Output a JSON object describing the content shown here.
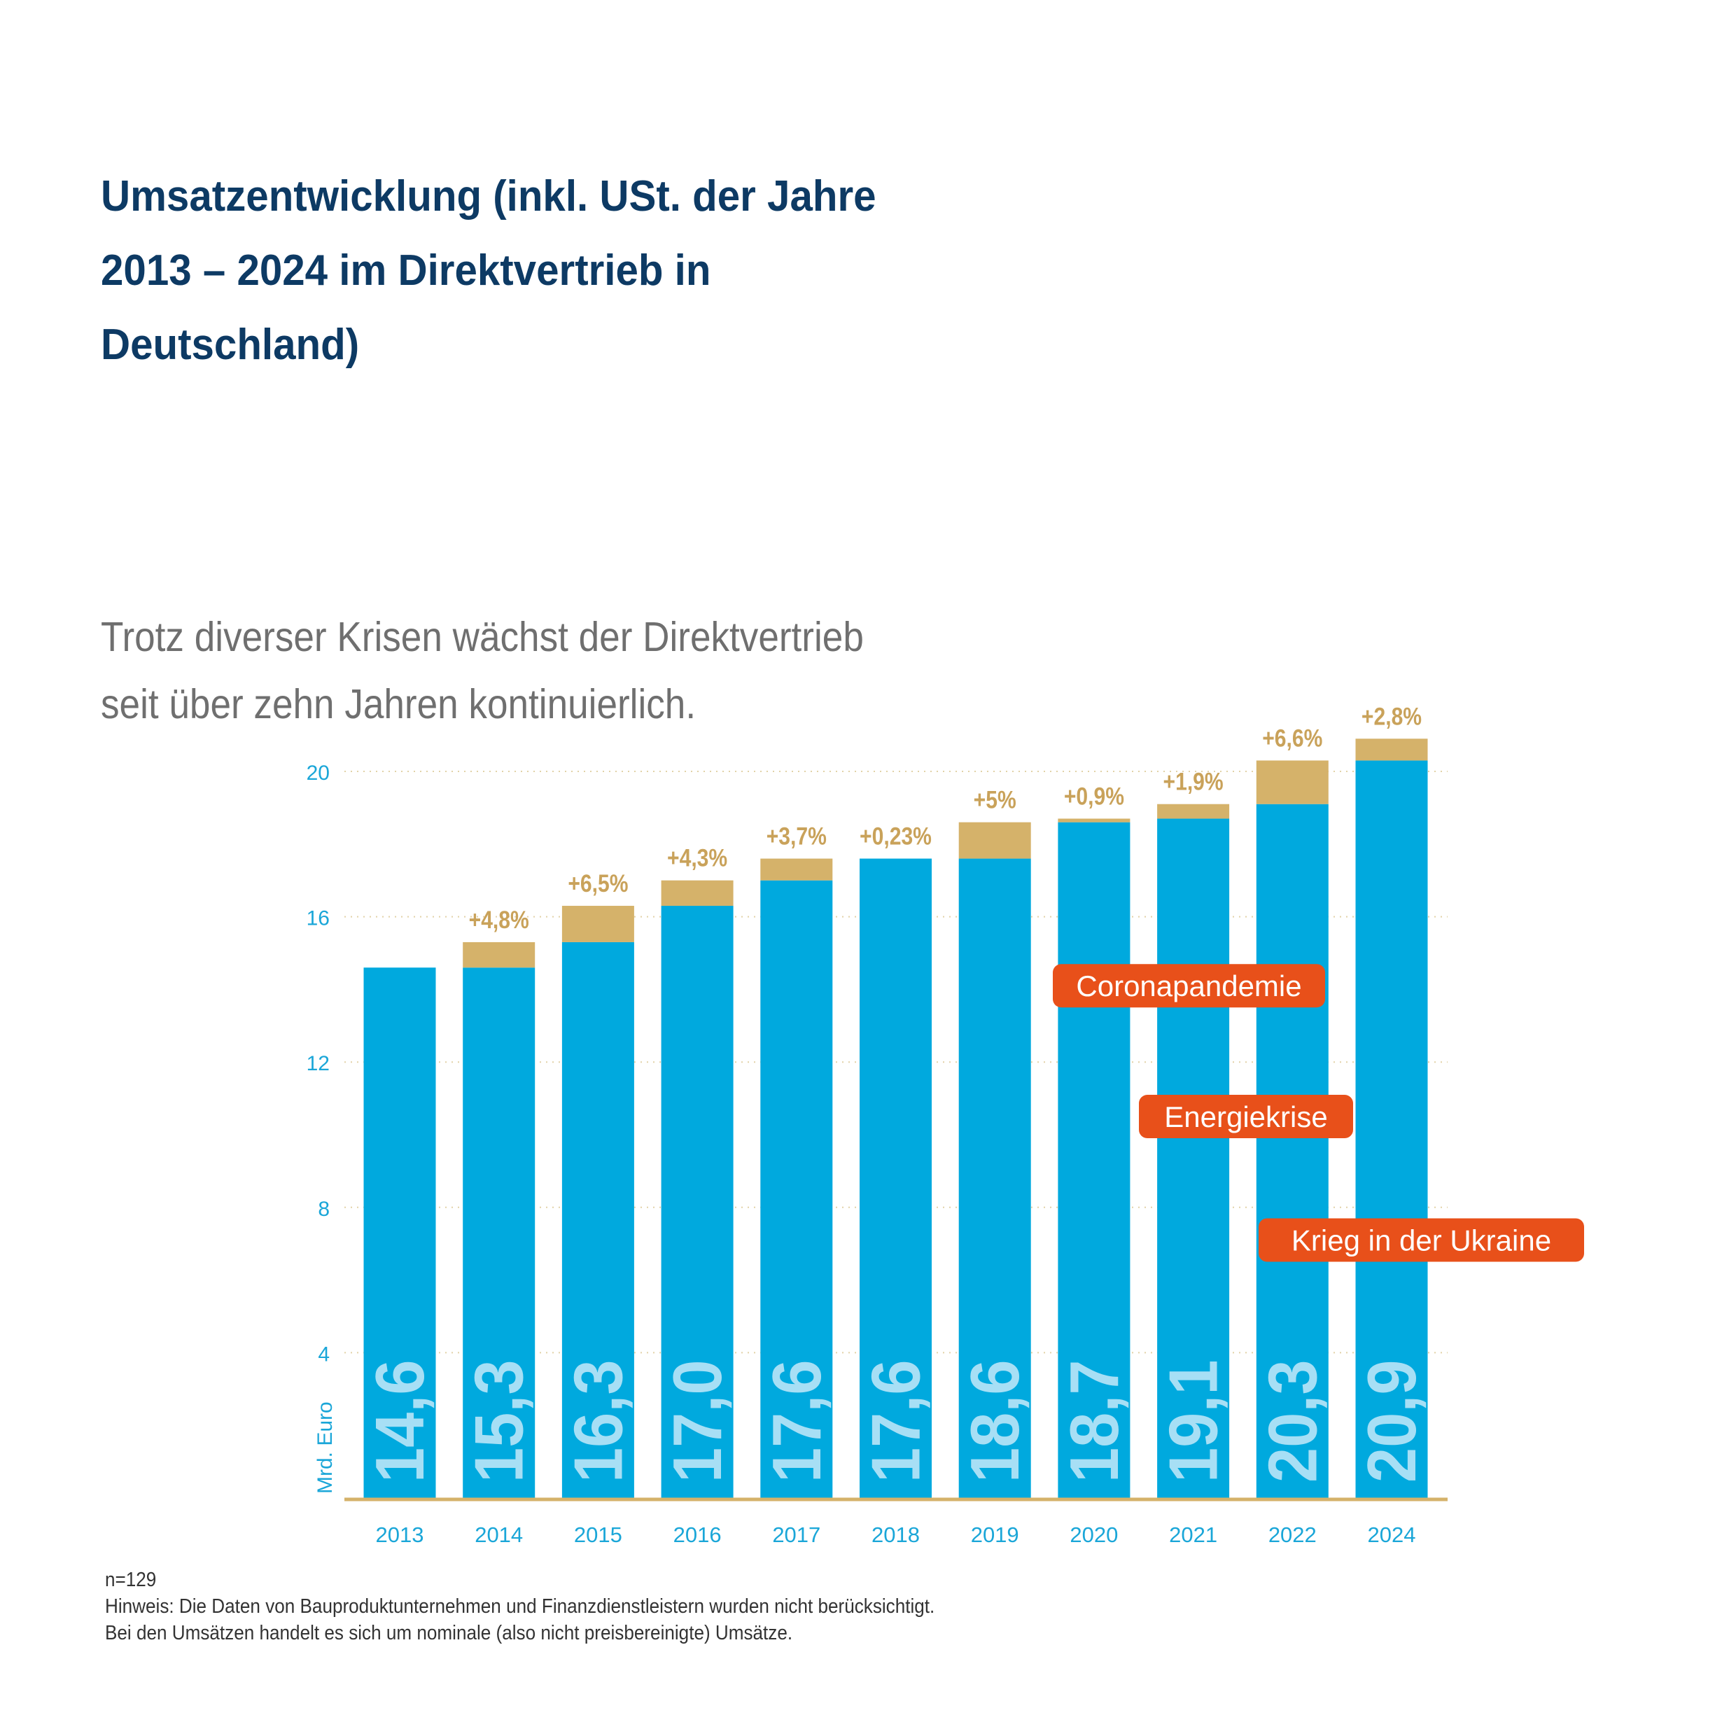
{
  "title_lines": [
    "Umsatzentwicklung (inkl. USt. der Jahre",
    "2013 – 2024 im Direktvertrieb in",
    "Deutschland)"
  ],
  "subtitle_lines": [
    "Trotz diverser Krisen wächst der Direktvertrieb",
    "seit über zehn Jahren kontinuierlich."
  ],
  "colors": {
    "bar": "#00a9de",
    "growth": "#d5b26a",
    "growth_text": "#c9a25a",
    "axis_text": "#1aa6d8",
    "value_text": "#a7dff5",
    "annotation_bg": "#e8501a",
    "baseline": "#d5b26a",
    "grid": "#e2d2a8"
  },
  "chart_data": {
    "type": "bar",
    "ylabel": "Mrd. Euro",
    "ylim": [
      0,
      20
    ],
    "yticks": [
      4,
      8,
      12,
      16,
      20
    ],
    "grid": "horizontal-dotted",
    "categories": [
      "2013",
      "2014",
      "2015",
      "2016",
      "2017",
      "2018",
      "2019",
      "2020",
      "2021",
      "2022",
      "2024"
    ],
    "values": [
      14.6,
      15.3,
      16.3,
      17.0,
      17.6,
      17.6,
      18.6,
      18.7,
      19.1,
      20.3,
      20.9
    ],
    "value_labels": [
      "14,6",
      "15,3",
      "16,3",
      "17,0",
      "17,6",
      "17,6",
      "18,6",
      "18,7",
      "19,1",
      "20,3",
      "20,9"
    ],
    "growth_labels": [
      "",
      "+4,8%",
      "+6,5%",
      "+4,3%",
      "+3,7%",
      "+0,23%",
      "+5%",
      "+0,9%",
      "+1,9%",
      "+6,6%",
      "+2,8%"
    ],
    "annotations": [
      {
        "label": "Coronapandemie",
        "y": 14.1
      },
      {
        "label": "Energiekrise",
        "y": 10.5
      },
      {
        "label": "Krieg in der Ukraine",
        "y": 7.1
      }
    ]
  },
  "footnote_lines": [
    "n=129",
    "Hinweis: Die Daten von Bauproduktunternehmen und Finanzdienstleistern wurden nicht berücksichtigt.",
    "Bei den Umsätzen handelt es sich um nominale (also nicht preisbereinigte) Umsätze."
  ]
}
